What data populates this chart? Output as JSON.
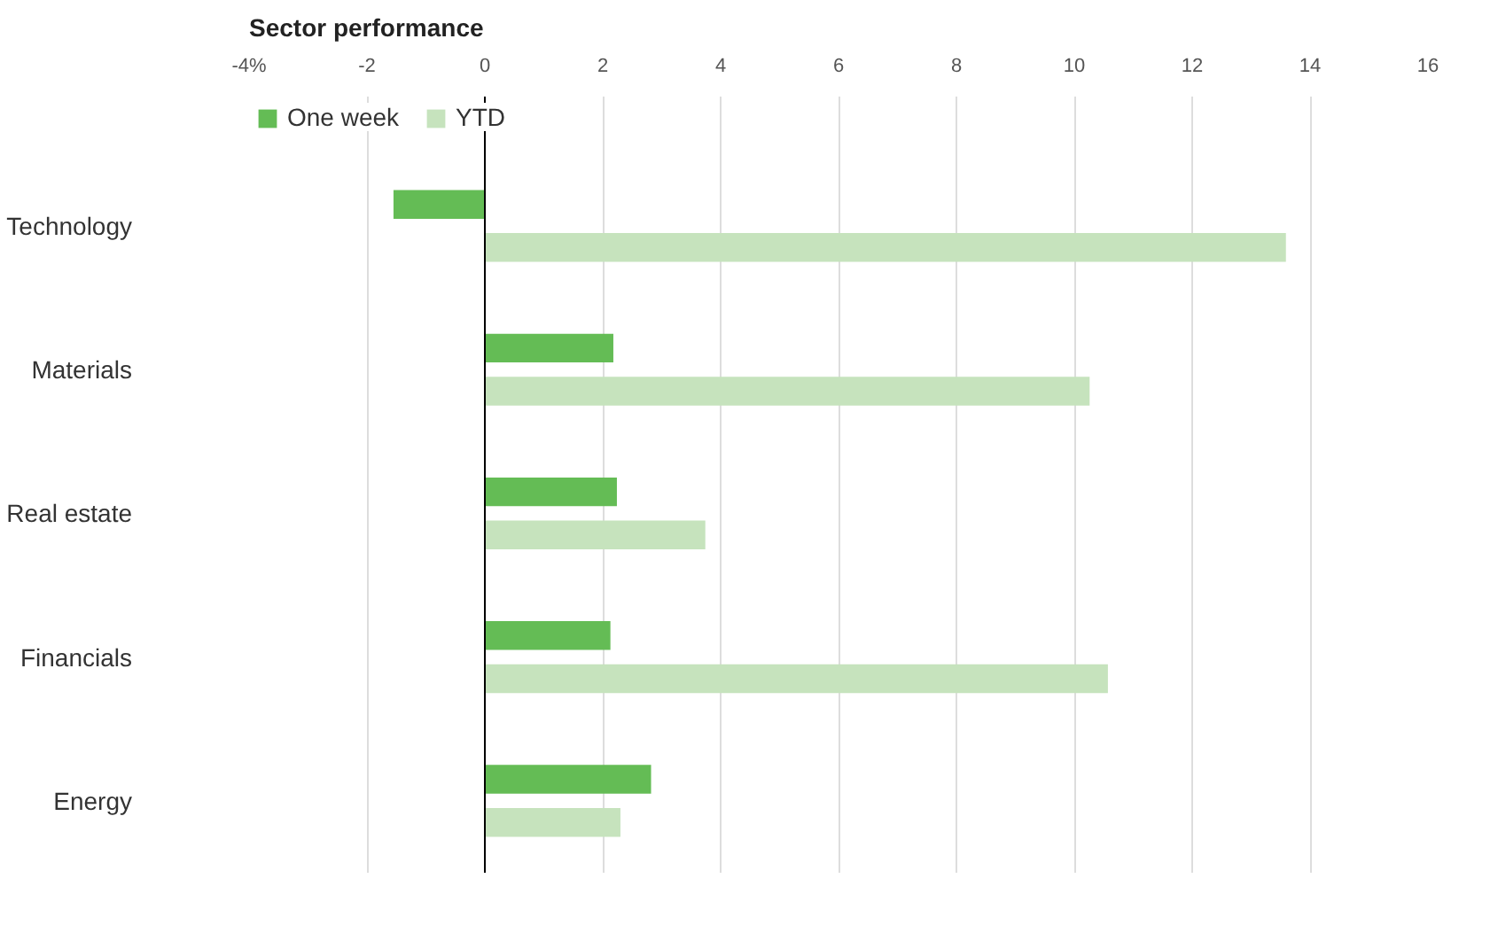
{
  "chart_data": {
    "type": "bar",
    "orientation": "horizontal",
    "title": "Sector performance",
    "categories": [
      "Technology",
      "Materials",
      "Real estate",
      "Financials",
      "Energy"
    ],
    "series": [
      {
        "name": "One week",
        "color": "#64bc55",
        "values": [
          -1.55,
          2.18,
          2.24,
          2.13,
          2.82
        ]
      },
      {
        "name": "YTD",
        "color": "#c6e3bd",
        "values": [
          13.59,
          10.26,
          3.74,
          10.57,
          2.3
        ]
      }
    ],
    "xlim": [
      -4,
      16
    ],
    "xticks": [
      {
        "value": -4,
        "label": "-4%"
      },
      -2,
      0,
      2,
      4,
      6,
      8,
      10,
      12,
      14,
      16
    ],
    "grid": "x",
    "legend": "top left"
  }
}
